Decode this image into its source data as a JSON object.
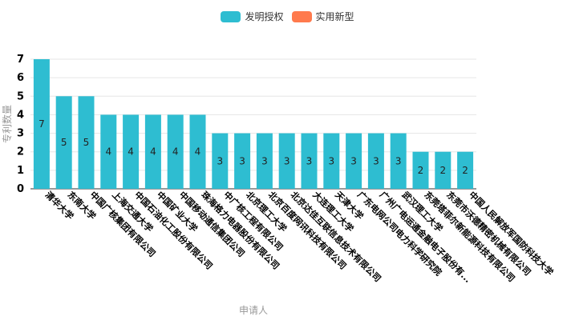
{
  "chart_data": {
    "type": "bar",
    "xlabel": "申请人",
    "ylabel": "专利数量",
    "ylim": [
      0,
      7
    ],
    "y_ticks": [
      0,
      1,
      2,
      3,
      4,
      5,
      6,
      7
    ],
    "grid": true,
    "legend_position": "top-center",
    "categories": [
      "清华大学",
      "东南大学",
      "中国广核集团有限公司",
      "上海交通大学",
      "中国石油化工股份有限公司",
      "中国矿业大学",
      "中国移动通信集团公司",
      "珠海格力电器股份有限公司",
      "中广核工程有限公司",
      "北京理工大学",
      "北京百度网讯科技有限公司",
      "北京达佳互联信息技术有限公司",
      "大连理工大学",
      "天津大学",
      "广东电网公司电力科学研究院",
      "广州广电运通金融电子股份有...",
      "武汉理工大学",
      "东莞塔菲尔新能源科技有限公司",
      "东莞市沃德精密机械有限公司",
      "中国人民解放军国防科技大学"
    ],
    "series": [
      {
        "name": "发明授权",
        "color": "#2ebdd1",
        "values": [
          7,
          5,
          5,
          4,
          4,
          4,
          4,
          4,
          3,
          3,
          3,
          3,
          3,
          3,
          3,
          3,
          3,
          2,
          2,
          2
        ]
      },
      {
        "name": "实用新型",
        "color": "#ff7a4d",
        "values": [
          0,
          0,
          0,
          0,
          0,
          0,
          0,
          0,
          0,
          0,
          0,
          0,
          0,
          0,
          0,
          0,
          0,
          0,
          0,
          0
        ]
      }
    ]
  }
}
